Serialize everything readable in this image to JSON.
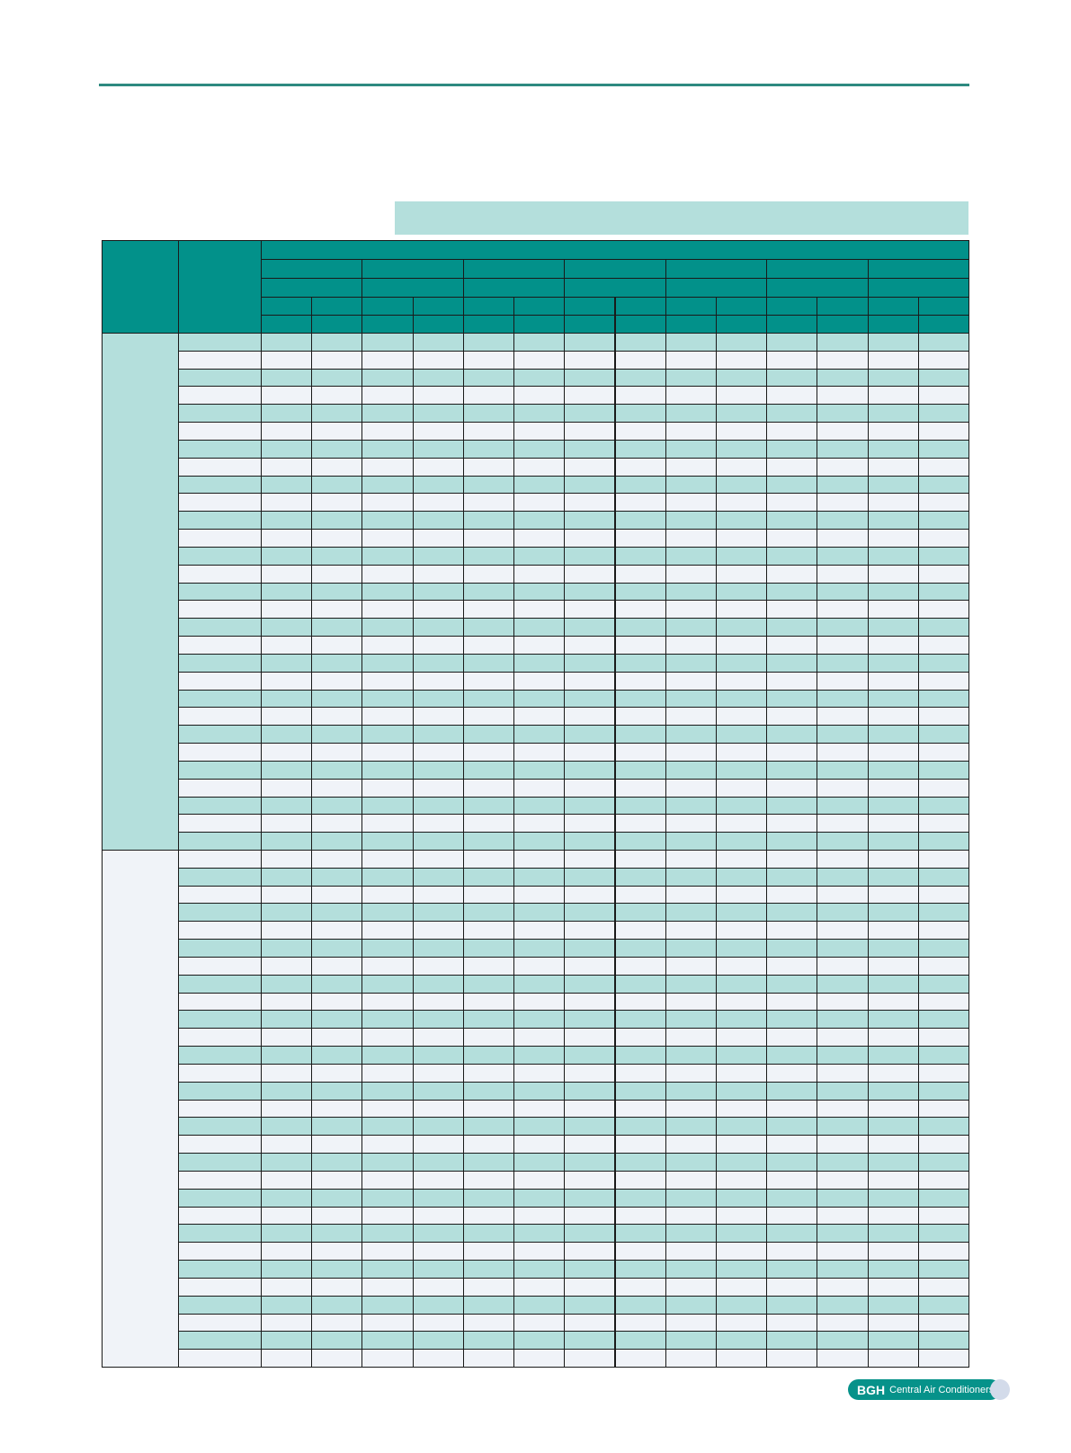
{
  "colors": {
    "header": "#02918a",
    "row_alt": "#b4dfdc",
    "row_light": "#f0f3f8",
    "rule": "#2e8a80"
  },
  "footer": {
    "brand": "BGH",
    "tagline": "Central Air Conditioners"
  }
}
